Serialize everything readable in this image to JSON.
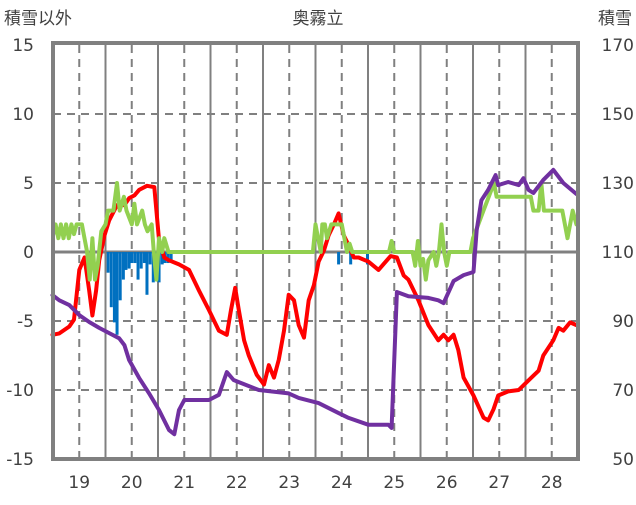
{
  "chart_data": {
    "type": "line",
    "title": "奥霧立",
    "ylabel_left": "積雪以外",
    "ylabel_right": "積雪",
    "xlim": [
      18.5,
      28.5
    ],
    "ylim_left": [
      -15,
      15
    ],
    "ylim_right": [
      50,
      170
    ],
    "x_ticks": [
      "19",
      "20",
      "21",
      "22",
      "23",
      "24",
      "25",
      "26",
      "27",
      "28"
    ],
    "x_tick_values": [
      19,
      20,
      21,
      22,
      23,
      24,
      25,
      26,
      27,
      28
    ],
    "y_left_ticks": [
      "15",
      "10",
      "5",
      "0",
      "-5",
      "-10",
      "-15"
    ],
    "y_left_tick_values": [
      15,
      10,
      5,
      0,
      -5,
      -10,
      -15
    ],
    "y_right_ticks": [
      "170",
      "150",
      "130",
      "110",
      "90",
      "70",
      "50"
    ],
    "y_right_tick_values": [
      170,
      150,
      130,
      110,
      90,
      70,
      50
    ],
    "grid": true,
    "colors": {
      "red": "#FF0000",
      "green": "#92D050",
      "purple": "#7030A0",
      "blue": "#0070C0",
      "grid": "#808080"
    },
    "series": [
      {
        "name": "red-line",
        "axis": "left",
        "color": "#FF0000",
        "points": [
          [
            18.49,
            -6.0
          ],
          [
            18.62,
            -5.9
          ],
          [
            18.81,
            -5.4
          ],
          [
            18.9,
            -4.9
          ],
          [
            19.0,
            -1.3
          ],
          [
            19.1,
            -0.4
          ],
          [
            19.19,
            -2.8
          ],
          [
            19.25,
            -4.6
          ],
          [
            19.32,
            -2.8
          ],
          [
            19.38,
            -0.6
          ],
          [
            19.48,
            1.2
          ],
          [
            19.57,
            2.3
          ],
          [
            19.72,
            3.4
          ],
          [
            19.86,
            3.4
          ],
          [
            19.95,
            3.9
          ],
          [
            20.05,
            4.1
          ],
          [
            20.14,
            4.5
          ],
          [
            20.29,
            4.8
          ],
          [
            20.43,
            4.7
          ],
          [
            20.52,
            0.9
          ],
          [
            20.62,
            -0.4
          ],
          [
            20.71,
            -0.6
          ],
          [
            20.9,
            -0.9
          ],
          [
            21.09,
            -1.3
          ],
          [
            21.28,
            -2.8
          ],
          [
            21.47,
            -4.2
          ],
          [
            21.66,
            -5.7
          ],
          [
            21.81,
            -6.0
          ],
          [
            21.89,
            -4.2
          ],
          [
            21.97,
            -2.6
          ],
          [
            22.04,
            -4.2
          ],
          [
            22.14,
            -6.4
          ],
          [
            22.23,
            -7.5
          ],
          [
            22.38,
            -8.9
          ],
          [
            22.52,
            -9.6
          ],
          [
            22.61,
            -8.2
          ],
          [
            22.71,
            -9.1
          ],
          [
            22.8,
            -7.8
          ],
          [
            22.9,
            -5.7
          ],
          [
            22.99,
            -3.1
          ],
          [
            23.09,
            -3.5
          ],
          [
            23.18,
            -5.3
          ],
          [
            23.28,
            -6.2
          ],
          [
            23.37,
            -3.5
          ],
          [
            23.47,
            -2.4
          ],
          [
            23.56,
            -0.7
          ],
          [
            23.66,
            0.1
          ],
          [
            23.75,
            1.2
          ],
          [
            23.85,
            2.0
          ],
          [
            23.94,
            2.8
          ],
          [
            24.04,
            1.2
          ],
          [
            24.13,
            0.5
          ],
          [
            24.23,
            -0.4
          ],
          [
            24.32,
            -0.4
          ],
          [
            24.51,
            -0.7
          ],
          [
            24.7,
            -1.3
          ],
          [
            24.93,
            -0.3
          ],
          [
            25.05,
            -0.4
          ],
          [
            25.18,
            -1.7
          ],
          [
            25.27,
            -2.0
          ],
          [
            25.46,
            -3.5
          ],
          [
            25.65,
            -5.3
          ],
          [
            25.84,
            -6.4
          ],
          [
            25.94,
            -6.0
          ],
          [
            26.03,
            -6.4
          ],
          [
            26.13,
            -6.0
          ],
          [
            26.22,
            -7.1
          ],
          [
            26.32,
            -9.1
          ],
          [
            26.51,
            -10.4
          ],
          [
            26.7,
            -12.0
          ],
          [
            26.79,
            -12.2
          ],
          [
            26.89,
            -11.4
          ],
          [
            26.98,
            -10.4
          ],
          [
            27.17,
            -10.1
          ],
          [
            27.37,
            -10.0
          ],
          [
            27.56,
            -9.3
          ],
          [
            27.75,
            -8.6
          ],
          [
            27.84,
            -7.5
          ],
          [
            28.03,
            -6.4
          ],
          [
            28.13,
            -5.5
          ],
          [
            28.22,
            -5.7
          ],
          [
            28.35,
            -5.1
          ],
          [
            28.47,
            -5.3
          ]
        ]
      },
      {
        "name": "green-line",
        "axis": "left",
        "color": "#92D050",
        "points": [
          [
            18.5,
            1.2
          ],
          [
            18.55,
            2
          ],
          [
            18.6,
            1
          ],
          [
            18.65,
            2
          ],
          [
            18.7,
            1
          ],
          [
            18.75,
            2
          ],
          [
            18.8,
            1
          ],
          [
            18.85,
            2
          ],
          [
            18.9,
            1.3
          ],
          [
            18.95,
            2
          ],
          [
            19.05,
            2
          ],
          [
            19.1,
            1
          ],
          [
            19.15,
            0
          ],
          [
            19.2,
            -2
          ],
          [
            19.25,
            1
          ],
          [
            19.3,
            -2
          ],
          [
            19.35,
            -1
          ],
          [
            19.42,
            1.5
          ],
          [
            19.5,
            2
          ],
          [
            19.55,
            3
          ],
          [
            19.65,
            3
          ],
          [
            19.72,
            5
          ],
          [
            19.77,
            3
          ],
          [
            19.85,
            4
          ],
          [
            19.9,
            3
          ],
          [
            20.0,
            2
          ],
          [
            20.05,
            3.5
          ],
          [
            20.1,
            2
          ],
          [
            20.2,
            3
          ],
          [
            20.25,
            2
          ],
          [
            20.3,
            1.5
          ],
          [
            20.38,
            2
          ],
          [
            20.42,
            0
          ],
          [
            20.47,
            -2
          ],
          [
            20.52,
            1
          ],
          [
            20.58,
            0
          ],
          [
            20.62,
            1
          ],
          [
            20.7,
            0
          ],
          [
            23.45,
            0
          ],
          [
            23.5,
            2
          ],
          [
            23.55,
            1
          ],
          [
            23.6,
            0
          ],
          [
            23.63,
            2
          ],
          [
            23.68,
            2
          ],
          [
            23.72,
            1
          ],
          [
            23.8,
            2
          ],
          [
            24.0,
            2
          ],
          [
            24.05,
            1
          ],
          [
            24.1,
            0
          ],
          [
            24.15,
            0.6
          ],
          [
            24.2,
            0
          ],
          [
            24.9,
            0
          ],
          [
            24.95,
            0.8
          ],
          [
            25.0,
            0
          ],
          [
            25.35,
            0
          ],
          [
            25.4,
            -1
          ],
          [
            25.45,
            0.8
          ],
          [
            25.5,
            -1
          ],
          [
            25.55,
            -0.5
          ],
          [
            25.6,
            -2
          ],
          [
            25.65,
            -0.6
          ],
          [
            25.75,
            0
          ],
          [
            25.8,
            -1
          ],
          [
            25.85,
            0
          ],
          [
            25.9,
            2
          ],
          [
            25.95,
            0
          ],
          [
            26.0,
            -1
          ],
          [
            26.05,
            0
          ],
          [
            26.45,
            0
          ],
          [
            26.5,
            1
          ],
          [
            26.6,
            2
          ],
          [
            26.7,
            3
          ],
          [
            26.9,
            5
          ],
          [
            26.95,
            4
          ],
          [
            27.6,
            4
          ],
          [
            27.65,
            3
          ],
          [
            27.75,
            3
          ],
          [
            27.8,
            5
          ],
          [
            27.85,
            3
          ],
          [
            28.2,
            3
          ],
          [
            28.25,
            2
          ],
          [
            28.3,
            1
          ],
          [
            28.4,
            3
          ],
          [
            28.47,
            2
          ]
        ]
      },
      {
        "name": "purple-line",
        "axis": "right",
        "color": "#7030A0",
        "points": [
          [
            18.49,
            97.5
          ],
          [
            18.62,
            96
          ],
          [
            18.81,
            94.6
          ],
          [
            19.0,
            91.7
          ],
          [
            19.19,
            89.7
          ],
          [
            19.38,
            88
          ],
          [
            19.57,
            86.5
          ],
          [
            19.76,
            85
          ],
          [
            19.86,
            83
          ],
          [
            19.95,
            78.7
          ],
          [
            20.14,
            73.5
          ],
          [
            20.33,
            69
          ],
          [
            20.52,
            64.2
          ],
          [
            20.71,
            58.4
          ],
          [
            20.81,
            57.2
          ],
          [
            20.9,
            64.2
          ],
          [
            21.0,
            67.1
          ],
          [
            21.09,
            67.1
          ],
          [
            21.47,
            67.1
          ],
          [
            21.66,
            68.6
          ],
          [
            21.81,
            75.2
          ],
          [
            21.94,
            72.9
          ],
          [
            22.04,
            72.3
          ],
          [
            22.42,
            70
          ],
          [
            22.99,
            69
          ],
          [
            23.18,
            67.7
          ],
          [
            23.56,
            66.2
          ],
          [
            23.94,
            63.3
          ],
          [
            24.13,
            61.9
          ],
          [
            24.51,
            59.9
          ],
          [
            24.89,
            59.9
          ],
          [
            24.95,
            59
          ],
          [
            25.05,
            98.4
          ],
          [
            25.27,
            97.2
          ],
          [
            25.65,
            96.7
          ],
          [
            25.84,
            96
          ],
          [
            25.94,
            95.2
          ],
          [
            26.13,
            101.6
          ],
          [
            26.32,
            103.3
          ],
          [
            26.51,
            104.2
          ],
          [
            26.57,
            116.4
          ],
          [
            26.66,
            125
          ],
          [
            26.79,
            128
          ],
          [
            26.93,
            132.3
          ],
          [
            26.98,
            129.4
          ],
          [
            27.17,
            130.3
          ],
          [
            27.37,
            129.4
          ],
          [
            27.46,
            131.4
          ],
          [
            27.56,
            128
          ],
          [
            27.65,
            127.1
          ],
          [
            27.84,
            130.9
          ],
          [
            28.03,
            133.8
          ],
          [
            28.22,
            130
          ],
          [
            28.47,
            126.8
          ]
        ]
      }
    ],
    "bars": {
      "name": "blue-bars",
      "axis": "left",
      "color": "#0070C0",
      "points": [
        [
          19.55,
          -1.5
        ],
        [
          19.61,
          -4
        ],
        [
          19.67,
          -5.1
        ],
        [
          19.72,
          -6
        ],
        [
          19.78,
          -3.5
        ],
        [
          19.84,
          -2
        ],
        [
          19.89,
          -1.3
        ],
        [
          19.95,
          -1.2
        ],
        [
          20.0,
          -0.8
        ],
        [
          20.06,
          -0.8
        ],
        [
          20.12,
          -2
        ],
        [
          20.18,
          -1.2
        ],
        [
          20.24,
          -0.8
        ],
        [
          20.29,
          -3.1
        ],
        [
          20.35,
          -0.9
        ],
        [
          20.41,
          -2.2
        ],
        [
          20.46,
          -0.9
        ],
        [
          20.52,
          -2.2
        ],
        [
          20.58,
          -0.9
        ],
        [
          20.63,
          -0.8
        ],
        [
          20.69,
          -0.8
        ],
        [
          20.75,
          -0.6
        ],
        [
          23.94,
          -0.9
        ],
        [
          24.17,
          -0.9
        ],
        [
          24.49,
          -0.9
        ]
      ]
    }
  }
}
